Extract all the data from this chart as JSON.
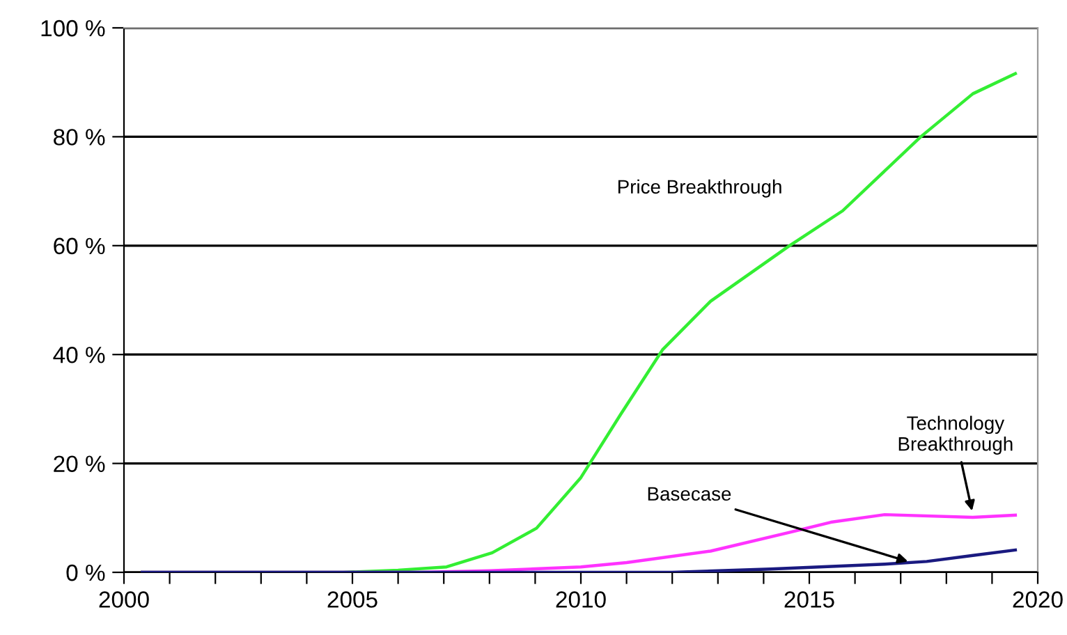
{
  "chart_data": {
    "type": "line",
    "series": [
      {
        "color": "#33ee33",
        "x": [
          2000.4,
          2004.8,
          2006.0,
          2007.06,
          2008.06,
          2009.03,
          2010.0,
          2010.87,
          2011.79,
          2012.84,
          2014.55,
          2015.73,
          2017.44,
          2018.58,
          2019.51
        ],
        "values": [
          0,
          0,
          0.4,
          1,
          3.6,
          8.1,
          17.4,
          29,
          40.9,
          49.8,
          59.9,
          66.4,
          80,
          87.9,
          91.6
        ]
      },
      {
        "color": "#ff33ff",
        "x": [
          2000.4,
          2006.5,
          2008.0,
          2010.0,
          2011.0,
          2012.84,
          2014.55,
          2015.47,
          2016.65,
          2018.58,
          2019.51
        ],
        "values": [
          0,
          0,
          0.3,
          1,
          1.8,
          3.9,
          7.3,
          9.2,
          10.6,
          10.1,
          10.5
        ]
      },
      {
        "color": "#1a1a80",
        "x": [
          2000.4,
          2012.0,
          2014.15,
          2016.65,
          2017.57,
          2018.58,
          2019.51
        ],
        "values": [
          0,
          0,
          0.6,
          1.5,
          2.0,
          3.1,
          4.1
        ]
      }
    ],
    "xlim": [
      2000,
      2020
    ],
    "xticks": [
      2000,
      {
        "value": 2001,
        "label": null
      },
      {
        "value": 2002,
        "label": null
      },
      {
        "value": 2003,
        "label": null
      },
      {
        "value": 2004,
        "label": null
      },
      2005,
      {
        "value": 2006,
        "label": null
      },
      {
        "value": 2007,
        "label": null
      },
      {
        "value": 2008,
        "label": null
      },
      {
        "value": 2009,
        "label": null
      },
      2010,
      {
        "value": 2011,
        "label": null
      },
      {
        "value": 2012,
        "label": null
      },
      {
        "value": 2013,
        "label": null
      },
      {
        "value": 2014,
        "label": null
      },
      2015,
      {
        "value": 2016,
        "label": null
      },
      {
        "value": 2017,
        "label": null
      },
      {
        "value": 2018,
        "label": null
      },
      {
        "value": 2019,
        "label": null
      },
      2020
    ],
    "ylim": [
      0,
      100
    ],
    "yticks": [
      {
        "value": 0,
        "label": "0 %"
      },
      {
        "value": 20,
        "label": "20 %"
      },
      {
        "value": 40,
        "label": "40 %"
      },
      {
        "value": 60,
        "label": "60 %"
      },
      {
        "value": 80,
        "label": "80 %"
      },
      {
        "value": 100,
        "label": "100 %"
      }
    ],
    "grid": "y",
    "marker": "none",
    "line_style": "solid",
    "annotations": [
      "Price Breakthrough",
      {
        "text": "Basecase",
        "x": 2017.24,
        "y": 1.8
      },
      {
        "text": "Technology\nBreakthrough",
        "x": 2018.58,
        "y": 10.6
      }
    ]
  }
}
